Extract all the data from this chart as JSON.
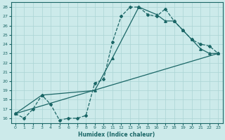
{
  "xlabel": "Humidex (Indice chaleur)",
  "bg_color": "#cceaea",
  "grid_color": "#aad4d4",
  "line_color": "#1a6666",
  "xlim": [
    -0.5,
    23.5
  ],
  "ylim": [
    15.5,
    28.5
  ],
  "xticks": [
    0,
    1,
    2,
    3,
    4,
    5,
    6,
    7,
    8,
    9,
    10,
    11,
    12,
    13,
    14,
    15,
    16,
    17,
    18,
    19,
    20,
    21,
    22,
    23
  ],
  "yticks": [
    16,
    17,
    18,
    19,
    20,
    21,
    22,
    23,
    24,
    25,
    26,
    27,
    28
  ],
  "line1_x": [
    0,
    1,
    2,
    3,
    4,
    5,
    6,
    7,
    8,
    9,
    10,
    11,
    12,
    13,
    14,
    15,
    16,
    17,
    18,
    19,
    20,
    21,
    22,
    23
  ],
  "line1_y": [
    16.5,
    16.0,
    17.0,
    18.5,
    17.5,
    15.8,
    16.0,
    16.0,
    16.3,
    19.8,
    20.2,
    24.2,
    27.0,
    28.0,
    28.0,
    27.2,
    27.0,
    27.8,
    26.5,
    25.5,
    24.5,
    24.0,
    23.8,
    23.0
  ],
  "line2_x": [
    0,
    3,
    9,
    11,
    14,
    16,
    17,
    18,
    19,
    20,
    21,
    22,
    23
  ],
  "line2_y": [
    16.5,
    18.5,
    19.0,
    22.5,
    28.0,
    27.2,
    26.5,
    26.5,
    25.5,
    24.5,
    23.5,
    23.0,
    23.0
  ],
  "line3_x": [
    0,
    23
  ],
  "line3_y": [
    16.5,
    23.0
  ]
}
